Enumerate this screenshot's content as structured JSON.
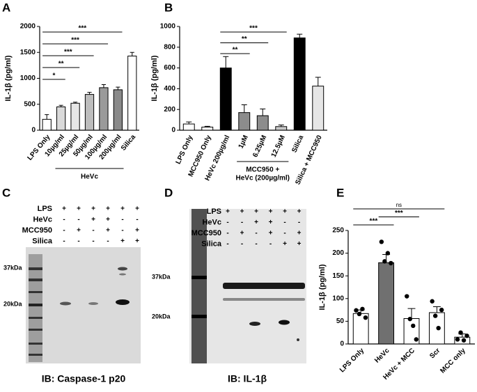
{
  "chart_data": [
    {
      "type": "bar",
      "panel": "A",
      "ylabel": "IL-1β (pg/ml)",
      "categories": [
        "LPS Only",
        "10µg/ml",
        "25µg/ml",
        "50µg/ml",
        "100µg/ml",
        "200µg/ml",
        "Silica"
      ],
      "values": [
        210,
        450,
        520,
        690,
        820,
        780,
        1430
      ],
      "errors": [
        90,
        30,
        20,
        40,
        60,
        50,
        70
      ],
      "colors": [
        "#ffffff",
        "#d9d9d9",
        "#e6e6e6",
        "#bdbdbd",
        "#9a9a9a",
        "#8a8a8a",
        "#ffffff"
      ],
      "ylim": [
        0,
        2000
      ],
      "yticks": [
        0,
        500,
        1000,
        1500,
        2000
      ],
      "groups": [
        {
          "label": [
            "HeVc"
          ],
          "from": 1,
          "to": 5
        }
      ],
      "significance": [
        {
          "label": "*",
          "from": 0,
          "to": 1
        },
        {
          "label": "**",
          "from": 0,
          "to": 2
        },
        {
          "label": "***",
          "from": 0,
          "to": 3
        },
        {
          "label": "***",
          "from": 0,
          "to": 4
        },
        {
          "label": "***",
          "from": 0,
          "to": 5
        }
      ]
    },
    {
      "type": "bar",
      "panel": "B",
      "ylabel": "IL-1β (pg/ml)",
      "categories": [
        "LPS Only",
        "MCC950 Only",
        "HeVc 200µg/ml",
        "1µM",
        "6.25µM",
        "12.5µM",
        "Silica",
        "Silica + MCC950"
      ],
      "values": [
        60,
        30,
        600,
        170,
        140,
        35,
        890,
        425
      ],
      "errors": [
        20,
        8,
        110,
        75,
        65,
        15,
        35,
        85
      ],
      "colors": [
        "#ffffff",
        "#ffffff",
        "#000000",
        "#8c8c8c",
        "#8c8c8c",
        "#c8c8c8",
        "#000000",
        "#e6e6e6"
      ],
      "ylim": [
        0,
        1000
      ],
      "yticks": [
        0,
        200,
        400,
        600,
        800,
        1000
      ],
      "groups": [
        {
          "label": [
            "MCC950 +",
            "HeVc (200µg/ml)"
          ],
          "from": 3,
          "to": 5
        }
      ],
      "significance": [
        {
          "label": "**",
          "from": 2,
          "to": 3
        },
        {
          "label": "**",
          "from": 2,
          "to": 4
        },
        {
          "label": "***",
          "from": 2,
          "to": 5
        }
      ]
    },
    {
      "type": "bar",
      "panel": "E",
      "ylabel": "IL-1β (pg/ml)",
      "categories": [
        "LPS Only",
        "HeVc",
        "HeVc + MCC",
        "Scr",
        "MCC only"
      ],
      "values": [
        67,
        179,
        56,
        69,
        15
      ],
      "errors": [
        8,
        18,
        22,
        13,
        7
      ],
      "points": [
        [
          74,
          66,
          77,
          58
        ],
        [
          225,
          182,
          200,
          178
        ],
        [
          105,
          55,
          40,
          10
        ],
        [
          94,
          62,
          35,
          75
        ],
        [
          10,
          25,
          8,
          18
        ]
      ],
      "colors": [
        "#ffffff",
        "#707070",
        "#ffffff",
        "#ffffff",
        "#ffffff"
      ],
      "ylim": [
        0,
        250
      ],
      "yticks": [
        0,
        50,
        100,
        150,
        200,
        250
      ],
      "groups": [],
      "significance": [
        {
          "label": "***",
          "from": 0,
          "to": 1
        },
        {
          "label": "***",
          "from": 1,
          "to": 2
        },
        {
          "label": "ns",
          "from": 0,
          "to": 3
        }
      ]
    }
  ],
  "blots": [
    {
      "panel": "C",
      "rows": [
        {
          "label": "LPS",
          "signs": [
            "+",
            "+",
            "+",
            "+",
            "+",
            "+"
          ]
        },
        {
          "label": "HeVc",
          "signs": [
            "-",
            "-",
            "+",
            "+",
            "-",
            "-"
          ]
        },
        {
          "label": "MCC950",
          "signs": [
            "-",
            "+",
            "-",
            "+",
            "-",
            "+"
          ]
        },
        {
          "label": "Silica",
          "signs": [
            "-",
            "-",
            "-",
            "-",
            "+",
            "+"
          ]
        }
      ],
      "markers": [
        "37kDa",
        "20kDa"
      ],
      "caption": "IB: Caspase-1 p20"
    },
    {
      "panel": "D",
      "rows": [
        {
          "label": "LPS",
          "signs": [
            "+",
            "+",
            "+",
            "+",
            "+",
            "+"
          ]
        },
        {
          "label": "HeVc",
          "signs": [
            "-",
            "-",
            "+",
            "+",
            "-",
            "-"
          ]
        },
        {
          "label": "MCC950",
          "signs": [
            "-",
            "+",
            "-",
            "+",
            "-",
            "+"
          ]
        },
        {
          "label": "Silica",
          "signs": [
            "-",
            "-",
            "-",
            "-",
            "+",
            "+"
          ]
        }
      ],
      "markers": [
        "37kDa",
        "20kDa"
      ],
      "caption": "IB: IL-1β"
    }
  ]
}
